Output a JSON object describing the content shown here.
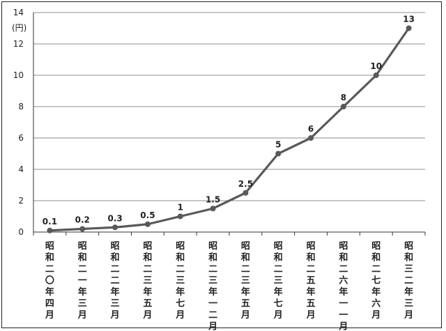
{
  "chart_data": {
    "type": "line",
    "title": "",
    "xlabel": "",
    "ylabel": "",
    "unit_label": "(円)",
    "categories": [
      "昭和二〇年四月",
      "昭和二一年三月",
      "昭和二二年三月",
      "昭和二三年五月",
      "昭和二三年七月",
      "昭和二三年一二月",
      "昭和二三年五月",
      "昭和二三年七月",
      "昭和二五年五月",
      "昭和二六年一一月",
      "昭和二七年六月",
      "昭和三二年三月"
    ],
    "series": [
      {
        "values": [
          0.1,
          0.2,
          0.3,
          0.5,
          1,
          1.5,
          2.5,
          5,
          6,
          8,
          10,
          13
        ],
        "labels": [
          "0.1",
          "0.2",
          "0.3",
          "0.5",
          "1",
          "1.5",
          "2.5",
          "5",
          "6",
          "8",
          "10",
          "13"
        ],
        "color": "#595959"
      }
    ],
    "yticks": [
      "0",
      "2",
      "4",
      "6",
      "8",
      "10",
      "12",
      "14"
    ],
    "ylim": [
      0,
      14
    ],
    "grid": true,
    "legend": "none"
  }
}
